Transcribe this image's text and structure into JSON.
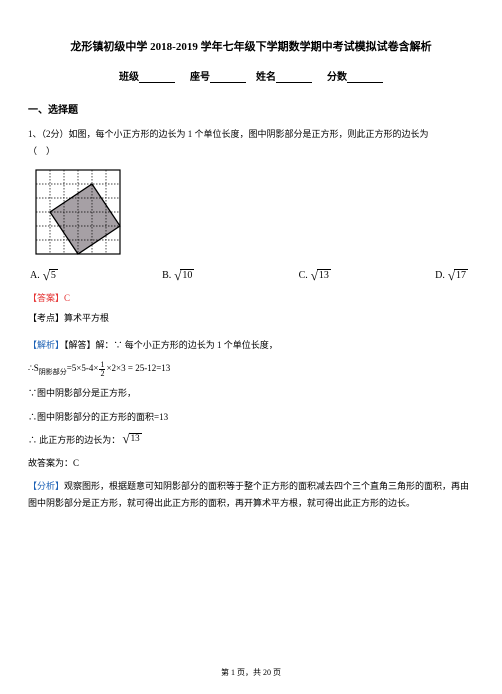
{
  "title": "龙形镇初级中学 2018-2019 学年七年级下学期数学期中考试模拟试卷含解析",
  "fill": {
    "class": "班级",
    "seat": "座号",
    "name": "姓名",
    "score": "分数"
  },
  "section1": "一、选择题",
  "q1": {
    "stem1": "1、（2分）如图，每个小正方形的边长为 1 个单位长度，图中阴影部分是正方形，则此正方形的边长为",
    "stem2": "（　）",
    "options": {
      "A": {
        "label": "A.",
        "val": "5"
      },
      "B": {
        "label": "B.",
        "val": "10"
      },
      "C": {
        "label": "C.",
        "val": "13"
      },
      "D": {
        "label": "D.",
        "val": "17"
      }
    },
    "answer_label": "【答案】",
    "answer_val": "C",
    "kd_label": "【考点】",
    "kd_val": "算术平方根",
    "jx_label": "【解析】",
    "jd_label": "【解答】",
    "jx_line1": "解：∵ 每个小正方形的边长为 1 个单位长度，",
    "jx_s_prefix": "∴S",
    "jx_s_sub": "阴影部分",
    "jx_s_calc": "=5×5-4×",
    "jx_s_tail": "×2×3 = 25-12=13",
    "jx_line3": "∵图中阴影部分是正方形，",
    "jx_line4": "∴图中阴影部分的正方形的面积=13",
    "jx_line5_pre": "∴ 此正方形的边长为：",
    "jx_line5_val": "13",
    "jx_line6": "故答案为：C",
    "fx_label": "【分析】",
    "fx_text": "观察图形，根据题意可知阴影部分的面积等于整个正方形的面积减去四个三个直角三角形的面积，再由图中阴影部分是正方形，就可得出此正方形的面积，再开算术平方根，就可得出此正方形的边长。"
  },
  "figure": {
    "grid": 6,
    "cell": 14,
    "shade": "#a6a0a5",
    "line": "#000000",
    "poly": [
      [
        1,
        3
      ],
      [
        3,
        6
      ],
      [
        6,
        4
      ],
      [
        4,
        1
      ]
    ]
  },
  "footer": "第 1 页，共 20 页"
}
